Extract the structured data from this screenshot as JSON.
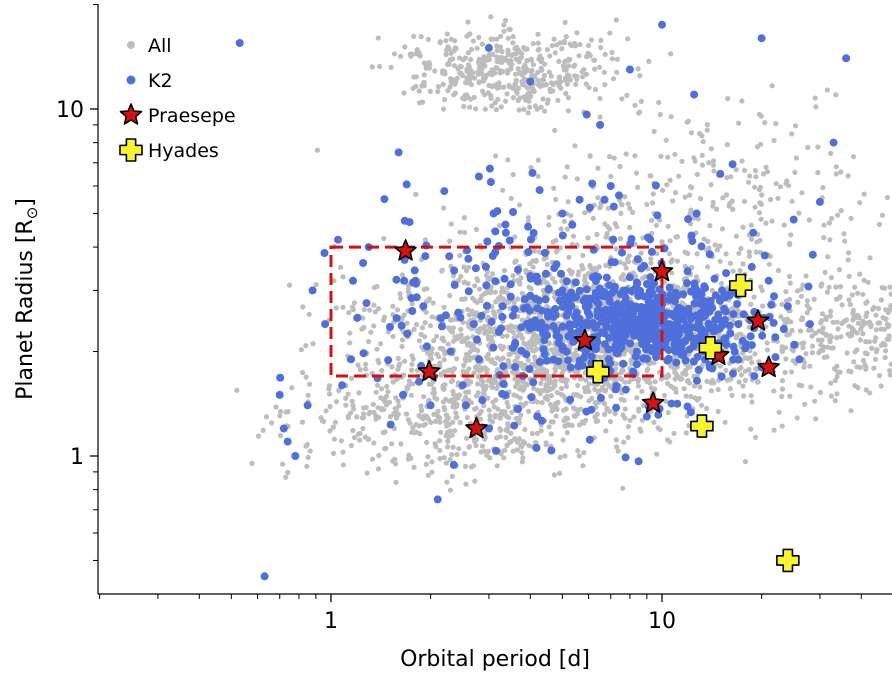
{
  "chart_data": {
    "type": "scatter",
    "xlabel": "Orbital period [d]",
    "ylabel": "Planet Radius [R",
    "ylabel_sub": "⊙",
    "ylabel_close": "]",
    "xscale": "log",
    "yscale": "log",
    "xlim": [
      0.2,
      50
    ],
    "ylim": [
      0.4,
      20
    ],
    "xticks": [
      {
        "value": 1,
        "label": "1"
      },
      {
        "value": 10,
        "label": "10"
      }
    ],
    "yticks": [
      {
        "value": 1,
        "label": "1"
      },
      {
        "value": 10,
        "label": "10"
      }
    ],
    "legend_position": "top-left",
    "colors": {
      "all": "#bdbdbd",
      "k2": "#4f6fdb",
      "praesepe": "#d61010",
      "hyades": "#f7f532",
      "box": "#d61010"
    },
    "series": [
      {
        "name": "All",
        "marker": "dot",
        "count_note": "background population",
        "points": []
      },
      {
        "name": "K2",
        "marker": "dot",
        "points": [
          [
            0.53,
            15.5
          ],
          [
            0.63,
            0.45
          ],
          [
            0.7,
            1.5
          ],
          [
            0.72,
            1.2
          ],
          [
            0.74,
            1.1
          ],
          [
            0.78,
            1.0
          ],
          [
            0.85,
            1.4
          ],
          [
            0.88,
            3.0
          ],
          [
            0.96,
            2.4
          ],
          [
            1.05,
            4.2
          ],
          [
            1.08,
            1.6
          ],
          [
            1.2,
            2.5
          ],
          [
            1.25,
            3.6
          ],
          [
            1.3,
            4.0
          ],
          [
            1.15,
            1.9
          ],
          [
            1.45,
            5.5
          ],
          [
            1.6,
            7.5
          ],
          [
            1.65,
            1.5
          ],
          [
            1.8,
            3.2
          ],
          [
            1.9,
            2.7
          ],
          [
            2.0,
            1.4
          ],
          [
            2.1,
            0.75
          ],
          [
            2.2,
            5.8
          ],
          [
            2.3,
            2.0
          ],
          [
            2.5,
            1.6
          ],
          [
            2.6,
            3.7
          ],
          [
            2.7,
            2.4
          ],
          [
            2.8,
            1.9
          ],
          [
            3.0,
            1.2
          ],
          [
            3.1,
            5.0
          ],
          [
            3.3,
            2.7
          ],
          [
            3.6,
            2.1
          ],
          [
            3.8,
            1.7
          ],
          [
            4.0,
            3.3
          ],
          [
            4.2,
            1.3
          ],
          [
            4.5,
            2.6
          ],
          [
            4.8,
            2.3
          ],
          [
            5.0,
            3.0
          ],
          [
            5.3,
            1.8
          ],
          [
            5.5,
            2.4
          ],
          [
            5.8,
            2.8
          ],
          [
            6.0,
            2.1
          ],
          [
            6.3,
            3.3
          ],
          [
            6.6,
            2.5
          ],
          [
            6.9,
            1.9
          ],
          [
            7.2,
            2.7
          ],
          [
            7.5,
            2.2
          ],
          [
            7.8,
            3.0
          ],
          [
            8.1,
            2.4
          ],
          [
            8.4,
            2.0
          ],
          [
            8.7,
            2.6
          ],
          [
            9.0,
            2.3
          ],
          [
            9.3,
            3.1
          ],
          [
            9.6,
            2.1
          ],
          [
            10.0,
            2.8
          ],
          [
            10.5,
            2.4
          ],
          [
            11.0,
            2.0
          ],
          [
            11.5,
            2.6
          ],
          [
            12.0,
            2.2
          ],
          [
            12.5,
            3.0
          ],
          [
            13.0,
            2.5
          ],
          [
            13.5,
            1.9
          ],
          [
            14.0,
            2.7
          ],
          [
            14.5,
            2.3
          ],
          [
            15.0,
            2.0
          ],
          [
            16.0,
            2.9
          ],
          [
            17.0,
            2.4
          ],
          [
            18.0,
            2.1
          ],
          [
            19.0,
            2.6
          ],
          [
            20.0,
            1.8
          ],
          [
            21.0,
            3.2
          ],
          [
            22.0,
            2.2
          ],
          [
            24.0,
            2.7
          ],
          [
            26.0,
            1.9
          ],
          [
            28.0,
            2.4
          ],
          [
            30.0,
            5.4
          ],
          [
            33.0,
            8.0
          ],
          [
            36.0,
            14.0
          ],
          [
            6.5,
            9.0
          ],
          [
            8.0,
            13.0
          ],
          [
            10.0,
            17.5
          ],
          [
            12.5,
            11.0
          ],
          [
            15.0,
            6.5
          ],
          [
            20.0,
            16.0
          ],
          [
            25.0,
            4.8
          ],
          [
            4.0,
            12.0
          ],
          [
            3.0,
            15.0
          ],
          [
            5.0,
            5.0
          ],
          [
            7.0,
            6.0
          ],
          [
            9.0,
            1.3
          ]
        ]
      },
      {
        "name": "Praesepe",
        "marker": "star",
        "points": [
          [
            1.68,
            3.9
          ],
          [
            1.98,
            1.75
          ],
          [
            2.75,
            1.2
          ],
          [
            5.85,
            2.15
          ],
          [
            9.4,
            1.42
          ],
          [
            10.0,
            3.4
          ],
          [
            14.8,
            1.95
          ],
          [
            19.5,
            2.45
          ],
          [
            21.0,
            1.8
          ]
        ]
      },
      {
        "name": "Hyades",
        "marker": "plus",
        "points": [
          [
            6.4,
            1.75
          ],
          [
            13.2,
            1.22
          ],
          [
            14.0,
            2.05
          ],
          [
            17.3,
            3.1
          ],
          [
            24.0,
            0.5
          ]
        ]
      }
    ],
    "box": {
      "x": [
        1,
        10
      ],
      "y": [
        1.7,
        4.0
      ],
      "style": "dashed"
    }
  }
}
